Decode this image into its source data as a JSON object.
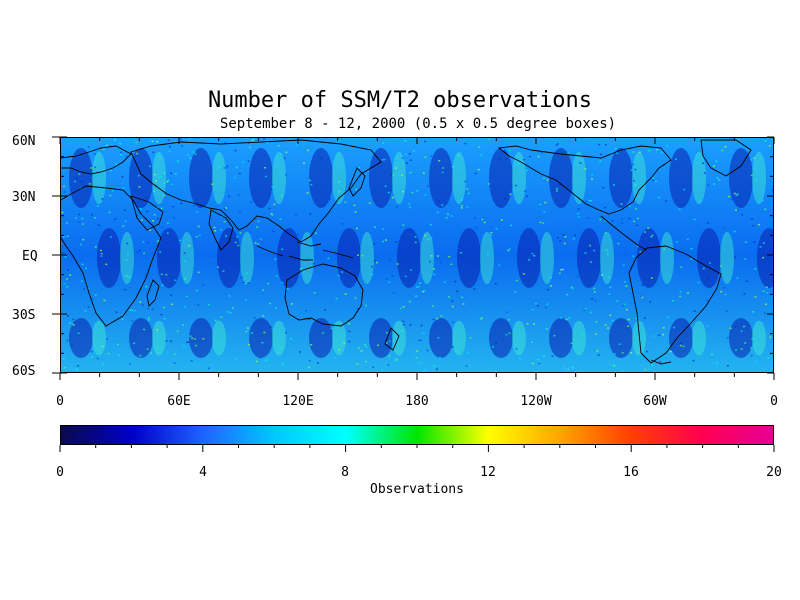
{
  "title": "Number of SSM/T2 observations",
  "subtitle": "September 8 - 12, 2000 (0.5 x 0.5 degree boxes)",
  "map": {
    "lat_labels": [
      "60N",
      "30N",
      "EQ",
      "30S",
      "60S"
    ],
    "lon_labels": [
      "0",
      "60E",
      "120E",
      "180",
      "120W",
      "60W",
      "0"
    ]
  },
  "colorbar": {
    "tick_labels": [
      "0",
      "4",
      "8",
      "12",
      "16",
      "20"
    ],
    "title": "Observations",
    "colors": [
      "#0a0a50",
      "#0000c8",
      "#1e64ff",
      "#00c8ff",
      "#00ffff",
      "#00e600",
      "#ffff00",
      "#ffa500",
      "#ff4000",
      "#ff0050",
      "#e60096"
    ]
  },
  "colors": {
    "background": "#ffffff",
    "coast": "#000000"
  }
}
